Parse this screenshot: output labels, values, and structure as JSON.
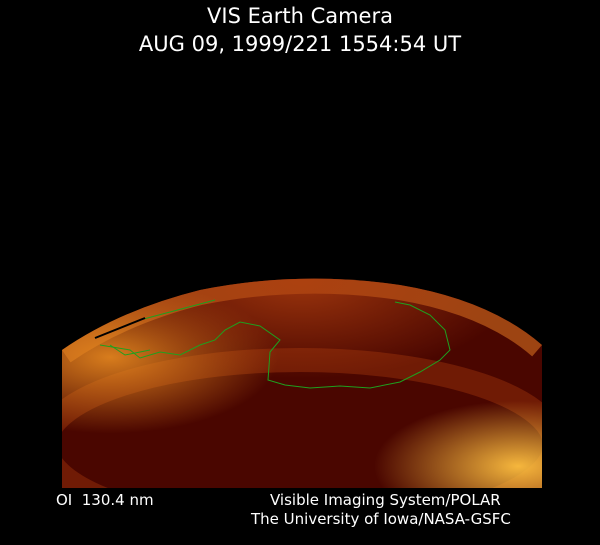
{
  "header": {
    "title": "VIS Earth Camera",
    "timestamp": "AUG 09, 1999/221 1554:54 UT"
  },
  "footer": {
    "filter": "OI  130.4 nm",
    "instrument": "Visible Imaging System/POLAR",
    "institution": "The University of Iowa/NASA-GSFC"
  },
  "colors": {
    "background": "#000000",
    "earth_dark": "#4a0600",
    "aurora": "#ffb030",
    "coastline": "#1fa01f"
  }
}
